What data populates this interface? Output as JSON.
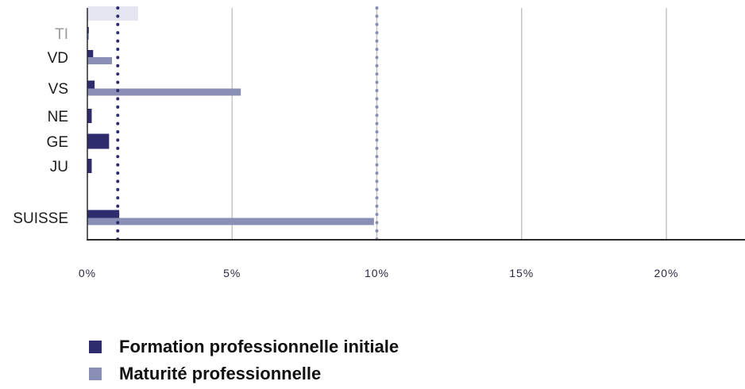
{
  "chart_data": {
    "type": "bar",
    "orientation": "horizontal",
    "categories": [
      "",
      "TI",
      "VD",
      "VS",
      "NE",
      "GE",
      "JU",
      "SUISSE"
    ],
    "series": [
      {
        "name": "Formation professionnelle initiale",
        "color": "#2e2b6e",
        "values": [
          null,
          0.05,
          0.2,
          0.25,
          0.15,
          0.75,
          0.15,
          1.1
        ]
      },
      {
        "name": "Maturité professionnelle",
        "color": "#8a8fb5",
        "values": [
          1.75,
          0.05,
          0.85,
          5.3,
          null,
          null,
          null,
          9.9
        ]
      }
    ],
    "reference_lines": [
      {
        "value": 1.05,
        "color": "#2e2b6e",
        "style": "dotted"
      },
      {
        "value": 10.0,
        "color": "#8a8fb5",
        "style": "dotted"
      }
    ],
    "xticks": [
      "0%",
      "5%",
      "10%",
      "15%",
      "20%"
    ],
    "xtick_values": [
      0,
      5,
      10,
      15,
      20
    ],
    "xlim": [
      0,
      22.7
    ],
    "grid": "vertical",
    "legend": "bottom-left",
    "title": "",
    "xlabel": "",
    "ylabel": ""
  }
}
